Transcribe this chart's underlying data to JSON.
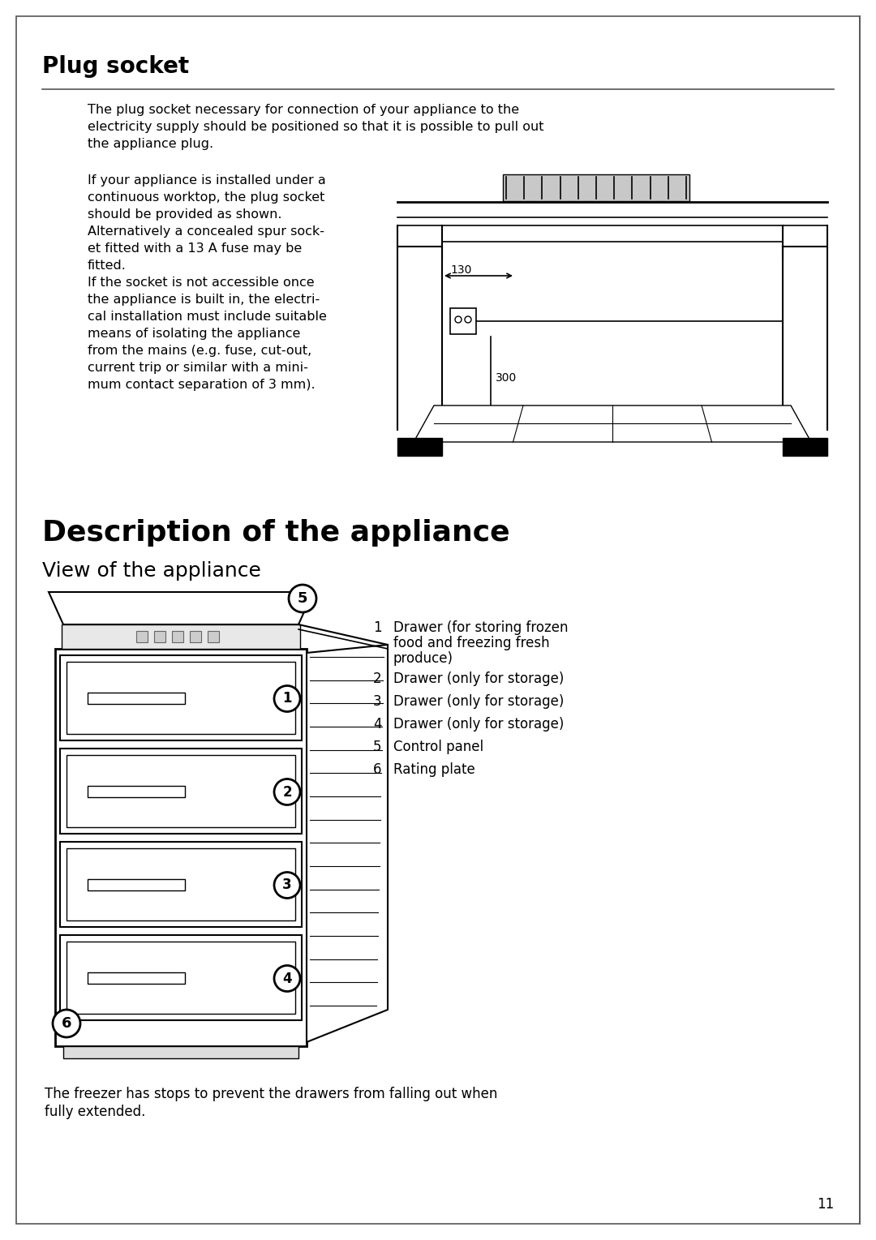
{
  "bg_color": "#ffffff",
  "section1_title": "Plug socket",
  "para1": "The plug socket necessary for connection of your appliance to the\nelectricity supply should be positioned so that it is possible to pull out\nthe appliance plug.",
  "para2_lines": [
    "If your appliance is installed under a",
    "continuous worktop, the plug socket",
    "should be provided as shown.",
    "Alternatively a concealed spur sock-",
    "et fitted with a 13 A fuse may be",
    "fitted.",
    "If the socket is not accessible once",
    "the appliance is built in, the electri-",
    "cal installation must include suitable",
    "means of isolating the appliance",
    "from the mains (e.g. fuse, cut-out,",
    "current trip or similar with a mini-",
    "mum contact separation of 3 mm)."
  ],
  "section2_title": "Description of the appliance",
  "section2_subtitle": "View of the appliance",
  "legend_items": [
    [
      "1",
      "Drawer (for storing frozen\nfood and freezing fresh\nproduce)"
    ],
    [
      "2",
      "Drawer (only for storage)"
    ],
    [
      "3",
      "Drawer (only for storage)"
    ],
    [
      "4",
      "Drawer (only for storage)"
    ],
    [
      "5",
      "Control panel"
    ],
    [
      "6",
      "Rating plate"
    ]
  ],
  "footer": "The freezer has stops to prevent the drawers from falling out when\nfully extended.",
  "page_number": "11"
}
